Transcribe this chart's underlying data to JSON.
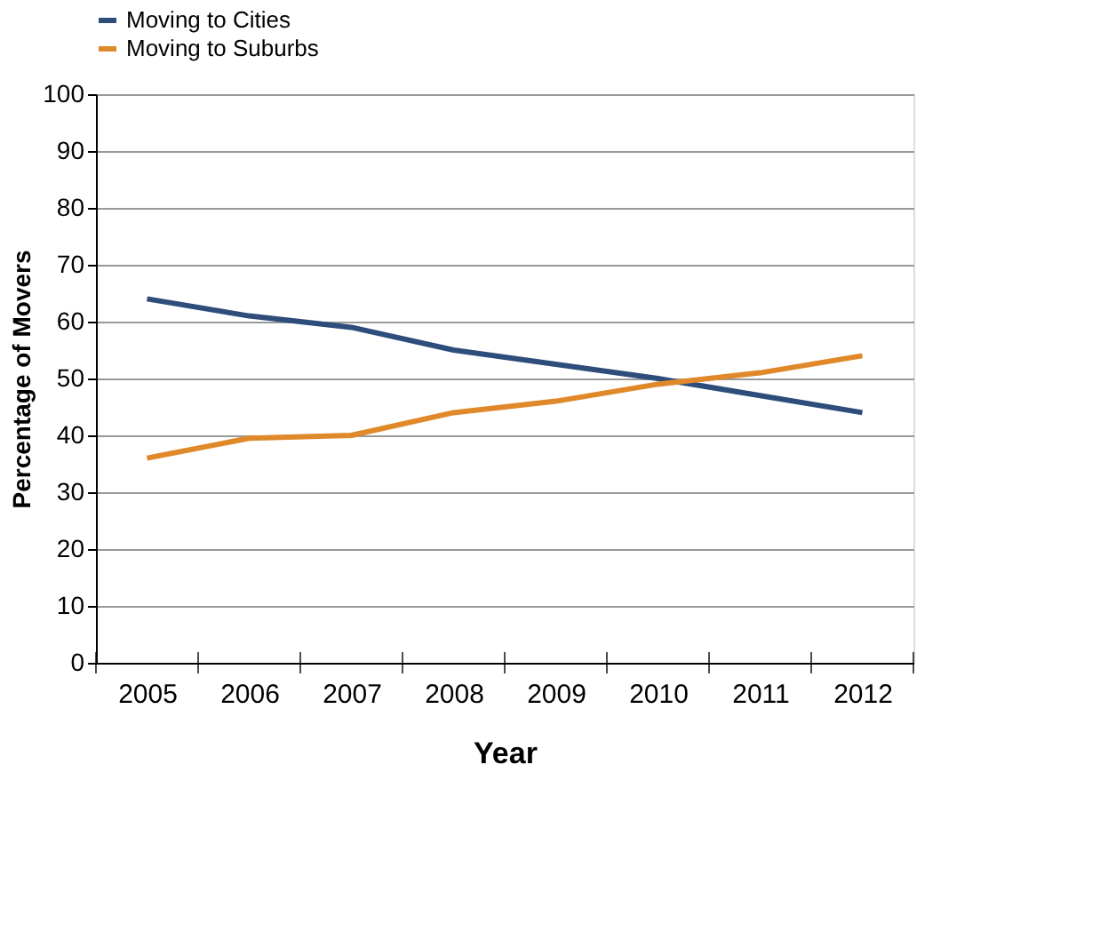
{
  "chart_data": {
    "type": "line",
    "xlabel": "Year",
    "ylabel": "Percentage of Movers",
    "categories": [
      "2005",
      "2006",
      "2007",
      "2008",
      "2009",
      "2010",
      "2011",
      "2012"
    ],
    "series": [
      {
        "name": "Moving to Cities",
        "color": "#2e4d7b",
        "values": [
          64,
          61,
          59,
          55,
          52.5,
          50,
          47,
          44
        ]
      },
      {
        "name": "Moving to Suburbs",
        "color": "#e0892a",
        "values": [
          36,
          39.5,
          40,
          44,
          46,
          49,
          51,
          54
        ]
      }
    ],
    "ylim": [
      0,
      100
    ],
    "yticks": [
      0,
      10,
      20,
      30,
      40,
      50,
      60,
      70,
      80,
      90,
      100
    ],
    "grid": "y",
    "legend": "top",
    "marker": "none",
    "line_style": "solid"
  }
}
